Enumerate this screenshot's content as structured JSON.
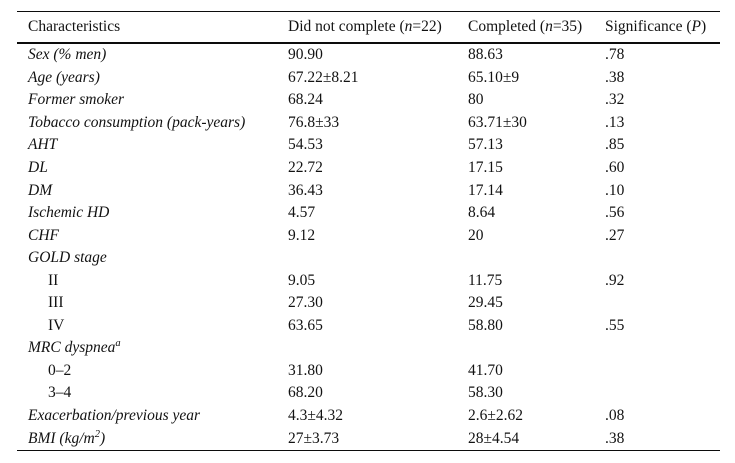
{
  "table": {
    "columns": [
      {
        "pre": "Characteristics",
        "it": "",
        "post": ""
      },
      {
        "pre": "Did not complete (",
        "it": "n",
        "post": "=22)"
      },
      {
        "pre": "Completed (",
        "it": "n",
        "post": "=35)"
      },
      {
        "pre": "Significance (",
        "it": "P",
        "post": ")"
      }
    ],
    "rows": [
      {
        "label": "Sex (% men)",
        "sup": "",
        "label_post": "",
        "v1": "90.90",
        "v2": "88.63",
        "p": ".78"
      },
      {
        "label": "Age (years)",
        "sup": "",
        "label_post": "",
        "v1": "67.22±8.21",
        "v2": "65.10±9",
        "p": ".38"
      },
      {
        "label": "Former smoker",
        "sup": "",
        "label_post": "",
        "v1": "68.24",
        "v2": "80",
        "p": ".32"
      },
      {
        "label": "Tobacco consumption (pack-years)",
        "sup": "",
        "label_post": "",
        "v1": "76.8±33",
        "v2": "63.71±30",
        "p": ".13"
      },
      {
        "label": "AHT",
        "sup": "",
        "label_post": "",
        "v1": "54.53",
        "v2": "57.13",
        "p": ".85"
      },
      {
        "label": "DL",
        "sup": "",
        "label_post": "",
        "v1": "22.72",
        "v2": "17.15",
        "p": ".60"
      },
      {
        "label": "DM",
        "sup": "",
        "label_post": "",
        "v1": "36.43",
        "v2": "17.14",
        "p": ".10"
      },
      {
        "label": "Ischemic HD",
        "sup": "",
        "label_post": "",
        "v1": "4.57",
        "v2": "8.64",
        "p": ".56"
      },
      {
        "label": "CHF",
        "sup": "",
        "label_post": "",
        "v1": "9.12",
        "v2": "20",
        "p": ".27"
      },
      {
        "label": "GOLD stage",
        "sup": "",
        "label_post": "",
        "v1": "",
        "v2": "",
        "p": ""
      },
      {
        "label": "II",
        "sup": "",
        "label_post": "",
        "v1": "9.05",
        "v2": "11.75",
        "p": ".92"
      },
      {
        "label": "III",
        "sup": "",
        "label_post": "",
        "v1": "27.30",
        "v2": "29.45",
        "p": ""
      },
      {
        "label": "IV",
        "sup": "",
        "label_post": "",
        "v1": "63.65",
        "v2": "58.80",
        "p": ".55"
      },
      {
        "label": "MRC dyspnea",
        "sup": "a",
        "label_post": "",
        "v1": "",
        "v2": "",
        "p": ""
      },
      {
        "label": "0–2",
        "sup": "",
        "label_post": "",
        "v1": "31.80",
        "v2": "41.70",
        "p": ""
      },
      {
        "label": "3–4",
        "sup": "",
        "label_post": "",
        "v1": "68.20",
        "v2": "58.30",
        "p": ""
      },
      {
        "label": "Exacerbation/previous year",
        "sup": "",
        "label_post": "",
        "v1": "4.3±4.32",
        "v2": "2.6±2.62",
        "p": ".08"
      },
      {
        "label": "BMI (kg/m",
        "sup": "2",
        "label_post": ")",
        "v1": "27±3.73",
        "v2": "28±4.54",
        "p": ".38"
      }
    ]
  }
}
